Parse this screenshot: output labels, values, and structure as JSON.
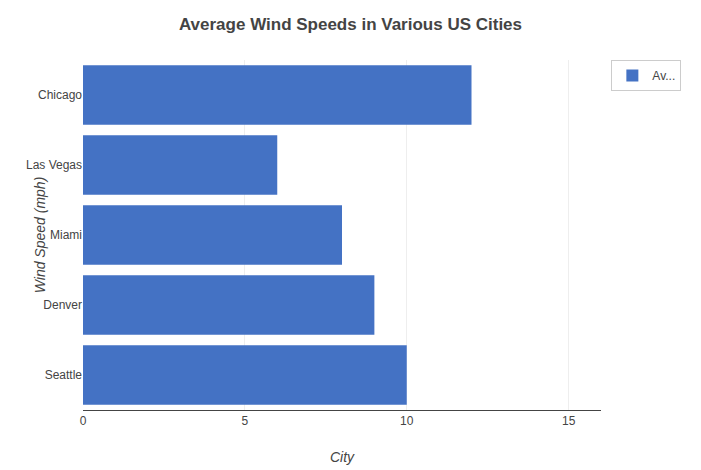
{
  "chart_data": {
    "type": "bar",
    "orientation": "horizontal",
    "title": "Average Wind Speeds in Various US Cities",
    "xlabel": "City",
    "ylabel": "Wind Speed (mph)",
    "categories": [
      "Seattle",
      "Denver",
      "Miami",
      "Las Vegas",
      "Chicago"
    ],
    "series": [
      {
        "name": "Av...",
        "color": "#4472C4",
        "values": [
          10,
          9,
          8,
          6,
          12
        ]
      }
    ],
    "xlim": [
      0,
      16
    ],
    "xticks": [
      0,
      5,
      10,
      15
    ],
    "grid": true,
    "legend": "upper right"
  }
}
